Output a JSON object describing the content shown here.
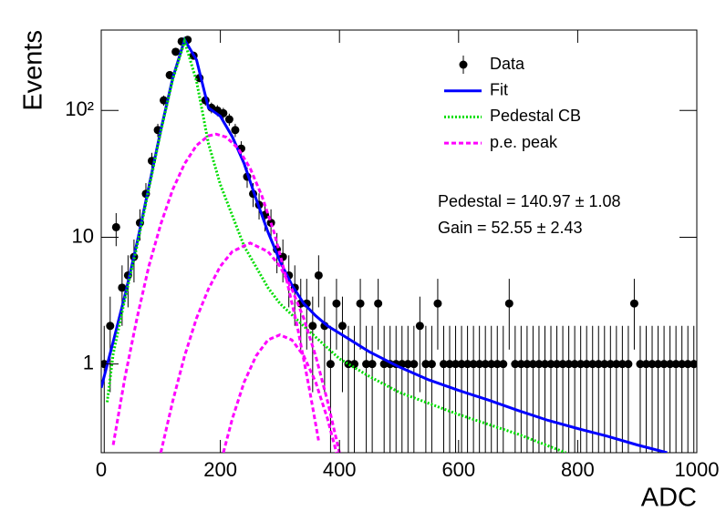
{
  "chart_data": {
    "type": "line",
    "x_label": "ADC",
    "y_label": "Events",
    "log_y": true,
    "xlim": [
      0,
      1000
    ],
    "ylim": [
      0.2,
      430
    ],
    "xticks": [
      0,
      200,
      400,
      600,
      800,
      1000
    ],
    "yticks": [
      1,
      10,
      {
        "value": 100,
        "label": "10²"
      }
    ],
    "annotations": [
      "Pedestal = 140.97 ± 1.08",
      "Gain = 52.55 ± 2.43"
    ],
    "legend_position": "top-right",
    "series": [
      {
        "name": "Data",
        "color": "#000000",
        "style": "markers",
        "x": [
          5,
          15,
          25,
          35,
          45,
          55,
          65,
          75,
          85,
          95,
          105,
          115,
          125,
          135,
          145,
          155,
          165,
          175,
          185,
          195,
          205,
          215,
          225,
          235,
          245,
          255,
          265,
          275,
          285,
          295,
          305,
          315,
          325,
          335,
          345,
          355,
          365,
          375,
          385,
          395,
          405,
          415,
          425,
          435,
          445,
          455,
          465,
          475,
          485,
          495,
          505,
          515,
          525,
          535,
          545,
          555,
          565,
          575,
          585,
          595,
          605,
          615,
          625,
          635,
          645,
          655,
          665,
          675,
          685,
          695,
          705,
          715,
          725,
          735,
          745,
          755,
          765,
          775,
          785,
          795,
          805,
          815,
          825,
          835,
          845,
          855,
          865,
          875,
          885,
          895,
          905,
          915,
          925,
          935,
          945,
          955,
          965,
          975,
          985,
          995
        ],
        "values": [
          1,
          2,
          12,
          4,
          5,
          7,
          13,
          22,
          40,
          70,
          120,
          190,
          290,
          350,
          360,
          270,
          180,
          120,
          105,
          100,
          95,
          85,
          70,
          50,
          30,
          22,
          18,
          15,
          13,
          8,
          7,
          5,
          4,
          3,
          3,
          2,
          5,
          2,
          1,
          3,
          2,
          1,
          1,
          3,
          1,
          1,
          3,
          1,
          1,
          1,
          1,
          1,
          1,
          2,
          1,
          1,
          3,
          1,
          1,
          1,
          1,
          1,
          1,
          1,
          1,
          1,
          1,
          1,
          3,
          1,
          1,
          1,
          1,
          1,
          1,
          1,
          1,
          1,
          1,
          1,
          1,
          1,
          1,
          1,
          1,
          1,
          1,
          1,
          1,
          3,
          1,
          1,
          1,
          1,
          1,
          1,
          1,
          1,
          1,
          1
        ],
        "errors": [
          1,
          1.4,
          3.5,
          2,
          2.2,
          2.6,
          3.6,
          4.7,
          6.3,
          8.4,
          11,
          13.8,
          17,
          18.7,
          19,
          16.4,
          13.4,
          11,
          10.2,
          10,
          9.7,
          9.2,
          8.4,
          7.1,
          5.5,
          4.7,
          4.2,
          3.9,
          3.6,
          2.8,
          2.6,
          2.2,
          2,
          1.7,
          1.7,
          1.4,
          2.2,
          1.4,
          1,
          1.7,
          1.4,
          1,
          1,
          1.7,
          1,
          1,
          1.7,
          1,
          1,
          1,
          1,
          1,
          1,
          1.4,
          1,
          1,
          1.7,
          1,
          1,
          1,
          1,
          1,
          1,
          1,
          1,
          1,
          1,
          1,
          1.7,
          1,
          1,
          1,
          1,
          1,
          1,
          1,
          1,
          1,
          1,
          1,
          1,
          1,
          1,
          1,
          1,
          1,
          1,
          1,
          1,
          1.7,
          1,
          1,
          1,
          1,
          1,
          1,
          1,
          1,
          1,
          1
        ]
      },
      {
        "name": "Fit",
        "color": "#0000ff",
        "style": "solid",
        "x": [
          0,
          20,
          40,
          60,
          80,
          100,
          120,
          140,
          160,
          180,
          200,
          220,
          240,
          260,
          280,
          300,
          320,
          340,
          360,
          380,
          400,
          450,
          500,
          550,
          600,
          650,
          700,
          750,
          800,
          850,
          900,
          950
        ],
        "values": [
          0.65,
          1.5,
          3.5,
          9,
          25,
          70,
          180,
          360,
          250,
          105,
          90,
          62,
          38,
          20,
          11,
          6.5,
          4.2,
          3,
          2.4,
          2,
          1.75,
          1.25,
          0.95,
          0.75,
          0.62,
          0.52,
          0.43,
          0.36,
          0.31,
          0.27,
          0.23,
          0.2
        ]
      },
      {
        "name": "Pedestal CB",
        "color": "#00dd00",
        "style": "dotted",
        "x": [
          10,
          20,
          40,
          60,
          80,
          100,
          120,
          140,
          160,
          180,
          200,
          240,
          280,
          300,
          350,
          400,
          450,
          500,
          600,
          700,
          780
        ],
        "values": [
          0.5,
          1.2,
          3.3,
          8.5,
          24,
          68,
          175,
          350,
          170,
          55,
          26,
          8.5,
          4,
          3,
          1.8,
          1.1,
          0.8,
          0.6,
          0.4,
          0.28,
          0.2
        ]
      },
      {
        "name": "p.e. peak",
        "color": "#ff00ff",
        "style": "dashed",
        "curves": [
          {
            "x": [
              20,
              40,
              60,
              80,
              100,
              120,
              140,
              160,
              180,
              193,
              210,
              230,
              250,
              270,
              290,
              310,
              330,
              350,
              365
            ],
            "values": [
              0.23,
              0.79,
              2.3,
              5.9,
              12.7,
              23.8,
              38,
              53,
              63,
              65,
              61.5,
              50,
              35,
              21,
              11,
              4.9,
              1.9,
              0.62,
              0.25
            ]
          },
          {
            "x": [
              100,
              120,
              140,
              160,
              180,
              200,
              220,
              250,
              280,
              300,
              320,
              340,
              360,
              380,
              400
            ],
            "values": [
              0.2,
              0.51,
              1.16,
              2.3,
              3.9,
              5.9,
              7.7,
              9,
              7.7,
              5.9,
              3.9,
              2.3,
              1.16,
              0.51,
              0.2
            ]
          },
          {
            "x": [
              205,
              220,
              240,
              260,
              280,
              300,
              320,
              340,
              360,
              380,
              395
            ],
            "values": [
              0.2,
              0.37,
              0.72,
              1.16,
              1.55,
              1.7,
              1.55,
              1.16,
              0.72,
              0.37,
              0.2
            ]
          }
        ]
      }
    ]
  }
}
